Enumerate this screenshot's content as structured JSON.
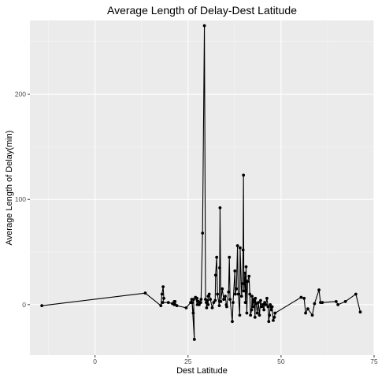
{
  "chart_data": {
    "type": "line",
    "title": "Average Length of Delay-Dest Latitude",
    "xlabel": "Dest Latitude",
    "ylabel": "Average Length of Delay(min)",
    "xlim": [
      -17.5,
      75
    ],
    "ylim": [
      -48,
      270
    ],
    "xticks": [
      0,
      25,
      50,
      75
    ],
    "yticks": [
      0,
      100,
      200
    ],
    "grid": true,
    "panel_color": "#ebebeb",
    "line_color": "#000000",
    "series": [
      {
        "x": [
          -14.3,
          13.5,
          17.7,
          18.0,
          18.3,
          18.5,
          18.2,
          19.7,
          20.8,
          21.3,
          21.5,
          21.3,
          22.0,
          24.5,
          25.7,
          26.0,
          26.4,
          26.1,
          26.7,
          26.5,
          27.0,
          27.5,
          27.4,
          27.8,
          28.0,
          28.4,
          28.5,
          28.9,
          29.4,
          29.7,
          29.9,
          30.0,
          30.2,
          30.1,
          30.4,
          30.4,
          30.7,
          31.0,
          31.5,
          31.9,
          32.3,
          32.4,
          32.7,
          32.9,
          33.4,
          33.5,
          33.6,
          33.8,
          34.2,
          34.6,
          35.0,
          35.3,
          35.4,
          35.9,
          36.1,
          36.3,
          36.9,
          37.1,
          37.6,
          37.7,
          38.0,
          38.3,
          38.5,
          38.9,
          39.0,
          39.4,
          39.6,
          39.8,
          39.9,
          40.0,
          40.3,
          40.4,
          40.6,
          40.8,
          41.0,
          41.4,
          41.6,
          41.8,
          42.1,
          42.2,
          42.4,
          42.6,
          42.8,
          43.0,
          43.1,
          43.3,
          43.6,
          43.9,
          44.2,
          44.5,
          44.8,
          45.1,
          45.4,
          45.6,
          45.9,
          46.2,
          46.5,
          46.7,
          46.9,
          47.1,
          47.4,
          47.6,
          47.9,
          48.2,
          48.4,
          55.4,
          56.2,
          56.6,
          57.2,
          58.4,
          59.0,
          60.2,
          60.6,
          61.1,
          64.8,
          65.3,
          67.3,
          70.1,
          71.3
        ],
        "y": [
          -1,
          11,
          -1,
          10,
          17,
          6,
          2,
          2,
          1,
          0,
          3,
          3,
          -1,
          -3,
          2,
          5,
          -8,
          2,
          -33,
          5,
          7,
          0,
          6,
          3,
          0,
          2,
          5,
          68,
          265,
          5,
          2,
          -3,
          4,
          2,
          0,
          8,
          10,
          5,
          -3,
          2,
          4,
          28,
          45,
          10,
          -1,
          35,
          92,
          3,
          15,
          5,
          8,
          0,
          -2,
          12,
          45,
          5,
          -16,
          2,
          32,
          10,
          15,
          56,
          10,
          -10,
          54,
          8,
          20,
          52,
          123,
          13,
          30,
          2,
          36,
          -8,
          22,
          27,
          10,
          -10,
          -5,
          8,
          -2,
          5,
          3,
          -12,
          6,
          1,
          -8,
          2,
          -10,
          4,
          -2,
          0,
          -5,
          2,
          0,
          6,
          -2,
          -16,
          -10,
          0,
          -5,
          -2,
          -15,
          -12,
          -8,
          7,
          6,
          -8,
          -4,
          -10,
          1,
          14,
          2,
          2,
          3,
          0,
          3,
          10,
          -7
        ]
      }
    ]
  }
}
